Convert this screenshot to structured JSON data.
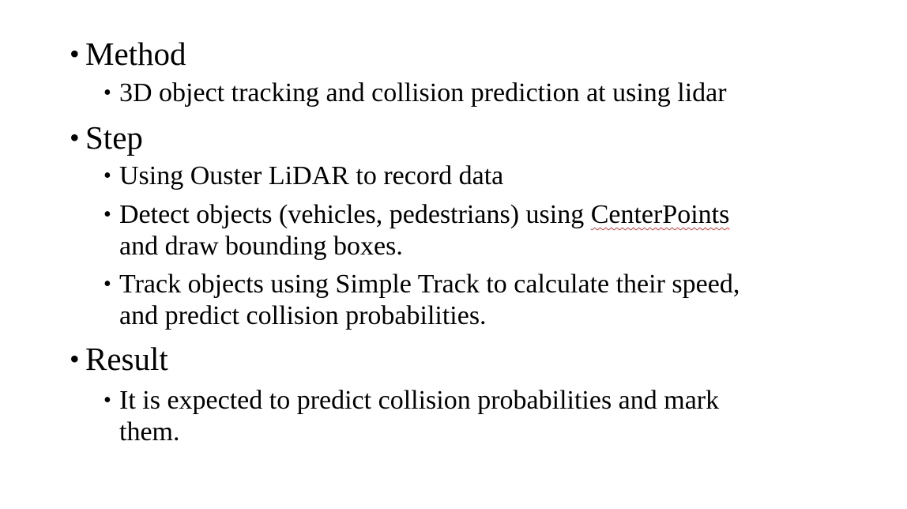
{
  "slide": {
    "sections": [
      {
        "heading": "Method",
        "items": [
          {
            "lines": [
              "3D object tracking and collision prediction at using lidar"
            ]
          }
        ]
      },
      {
        "heading": "Step",
        "items": [
          {
            "lines": [
              "Using Ouster LiDAR to record data"
            ]
          },
          {
            "line1_before": "Detect objects (vehicles, pedestrians) using ",
            "line1_flagged": "CenterPoints",
            "line2": "and draw bounding boxes."
          },
          {
            "lines": [
              "Track objects using Simple Track to calculate their speed,",
              "and predict collision probabilities."
            ]
          }
        ]
      },
      {
        "heading": "Result",
        "items": [
          {
            "lines": [
              "It is expected to predict collision probabilities and mark",
              "them."
            ]
          }
        ]
      }
    ],
    "bullet_glyph": "•",
    "spellcheck_underline_color": "#e03030"
  }
}
